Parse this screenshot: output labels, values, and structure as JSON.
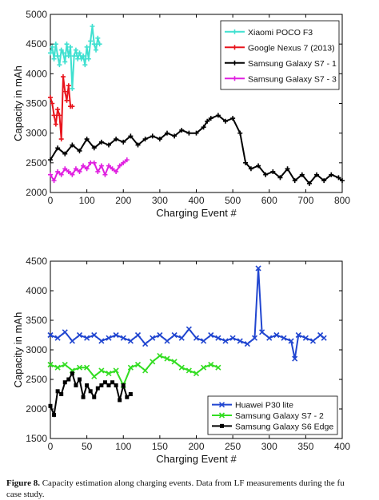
{
  "chart_data": [
    {
      "type": "line",
      "xlabel": "Charging Event #",
      "ylabel": "Capacity in mAh",
      "xlim": [
        0,
        800
      ],
      "ylim": [
        2000,
        5000
      ],
      "xticks": [
        "0",
        "100",
        "200",
        "300",
        "400",
        "500",
        "600",
        "700",
        "800"
      ],
      "yticks": [
        "2000",
        "2500",
        "3000",
        "3500",
        "4000",
        "4500",
        "5000"
      ],
      "legend_position": "top-right",
      "grid": false,
      "marker": "plus",
      "series": [
        {
          "name": "Xiaomi POCO F3",
          "color": "#40e0d0",
          "x": [
            0,
            5,
            10,
            15,
            20,
            25,
            30,
            35,
            40,
            45,
            50,
            55,
            60,
            65,
            70,
            75,
            80,
            85,
            90,
            95,
            100,
            105,
            110,
            115,
            120,
            125,
            130,
            135
          ],
          "y": [
            4350,
            4450,
            4250,
            4500,
            4300,
            4150,
            4400,
            4350,
            4200,
            4500,
            4300,
            4450,
            3750,
            4300,
            4400,
            4250,
            4350,
            4250,
            4300,
            4150,
            4450,
            4250,
            4550,
            4800,
            4500,
            4400,
            4600,
            4500
          ]
        },
        {
          "name": "Google Nexus 7 (2013)",
          "color": "#e8141c",
          "x": [
            0,
            5,
            10,
            15,
            20,
            25,
            30,
            35,
            40,
            45,
            50,
            55,
            60
          ],
          "y": [
            3600,
            3500,
            3300,
            3150,
            3400,
            3300,
            2900,
            3950,
            3700,
            3550,
            3800,
            3450,
            3450
          ]
        },
        {
          "name": "Samsung Galaxy S7 - 1",
          "color": "#000000",
          "x": [
            0,
            20,
            40,
            60,
            80,
            100,
            120,
            140,
            160,
            180,
            200,
            220,
            240,
            260,
            280,
            300,
            320,
            340,
            360,
            380,
            400,
            420,
            430,
            440,
            460,
            480,
            500,
            520,
            535,
            550,
            570,
            590,
            610,
            630,
            650,
            670,
            690,
            710,
            730,
            750,
            770,
            790,
            800
          ],
          "y": [
            2550,
            2750,
            2650,
            2800,
            2700,
            2900,
            2750,
            2850,
            2800,
            2900,
            2850,
            2950,
            2800,
            2900,
            2950,
            2900,
            3000,
            2950,
            3050,
            3000,
            3000,
            3100,
            3200,
            3250,
            3300,
            3200,
            3250,
            3000,
            2500,
            2400,
            2450,
            2300,
            2350,
            2250,
            2400,
            2200,
            2300,
            2150,
            2300,
            2200,
            2300,
            2250,
            2200
          ]
        },
        {
          "name": "Samsung Galaxy S7 - 3",
          "color": "#e020e0",
          "x": [
            0,
            10,
            20,
            30,
            40,
            50,
            60,
            70,
            80,
            90,
            100,
            110,
            120,
            130,
            140,
            150,
            160,
            170,
            180,
            190,
            200,
            210
          ],
          "y": [
            2300,
            2200,
            2350,
            2300,
            2400,
            2350,
            2300,
            2400,
            2350,
            2450,
            2400,
            2500,
            2500,
            2350,
            2450,
            2300,
            2450,
            2400,
            2350,
            2450,
            2500,
            2550
          ]
        }
      ]
    },
    {
      "type": "line",
      "xlabel": "Charging Event #",
      "ylabel": "Capacity in mAh",
      "xlim": [
        0,
        400
      ],
      "ylim": [
        1500,
        4500
      ],
      "xticks": [
        "0",
        "50",
        "100",
        "150",
        "200",
        "250",
        "300",
        "350",
        "400"
      ],
      "yticks": [
        "1500",
        "2000",
        "2500",
        "3000",
        "3500",
        "4000",
        "4500"
      ],
      "legend_position": "bottom-right",
      "grid": false,
      "series": [
        {
          "name": "Huawei P30 lite",
          "color": "#2146d0",
          "marker": "x",
          "x": [
            0,
            10,
            20,
            30,
            40,
            50,
            60,
            70,
            80,
            90,
            100,
            110,
            120,
            130,
            140,
            150,
            160,
            170,
            180,
            190,
            200,
            210,
            220,
            230,
            240,
            250,
            260,
            270,
            280,
            285,
            290,
            300,
            310,
            320,
            330,
            335,
            340,
            350,
            360,
            370,
            375
          ],
          "y": [
            3250,
            3200,
            3300,
            3150,
            3250,
            3200,
            3250,
            3150,
            3200,
            3250,
            3200,
            3150,
            3250,
            3100,
            3200,
            3250,
            3150,
            3250,
            3200,
            3350,
            3200,
            3150,
            3250,
            3200,
            3150,
            3200,
            3150,
            3100,
            3200,
            4380,
            3300,
            3200,
            3250,
            3200,
            3150,
            2850,
            3250,
            3200,
            3150,
            3250,
            3200
          ]
        },
        {
          "name": "Samsung Galaxy S7 - 2",
          "color": "#33dd22",
          "marker": "x",
          "x": [
            0,
            10,
            20,
            30,
            40,
            50,
            60,
            70,
            80,
            90,
            100,
            110,
            120,
            130,
            140,
            150,
            160,
            170,
            180,
            190,
            200,
            210,
            220,
            230
          ],
          "y": [
            2750,
            2700,
            2750,
            2650,
            2700,
            2700,
            2550,
            2650,
            2600,
            2650,
            2400,
            2700,
            2750,
            2650,
            2800,
            2900,
            2850,
            2800,
            2700,
            2650,
            2600,
            2700,
            2750,
            2700
          ]
        },
        {
          "name": "Samsung Galaxy S6 Edge",
          "color": "#000000",
          "marker": "square",
          "x": [
            0,
            5,
            10,
            15,
            20,
            25,
            30,
            35,
            40,
            45,
            50,
            55,
            60,
            65,
            70,
            75,
            80,
            85,
            90,
            95,
            100,
            105,
            110
          ],
          "y": [
            2050,
            1900,
            2300,
            2250,
            2450,
            2500,
            2600,
            2400,
            2500,
            2200,
            2400,
            2300,
            2200,
            2350,
            2400,
            2450,
            2400,
            2450,
            2400,
            2150,
            2400,
            2200,
            2250
          ]
        }
      ]
    }
  ],
  "caption": {
    "label": "Figure 8.",
    "text": " Capacity estimation along charging events. Data from LF measurements during the fu",
    "line2": "case study."
  }
}
